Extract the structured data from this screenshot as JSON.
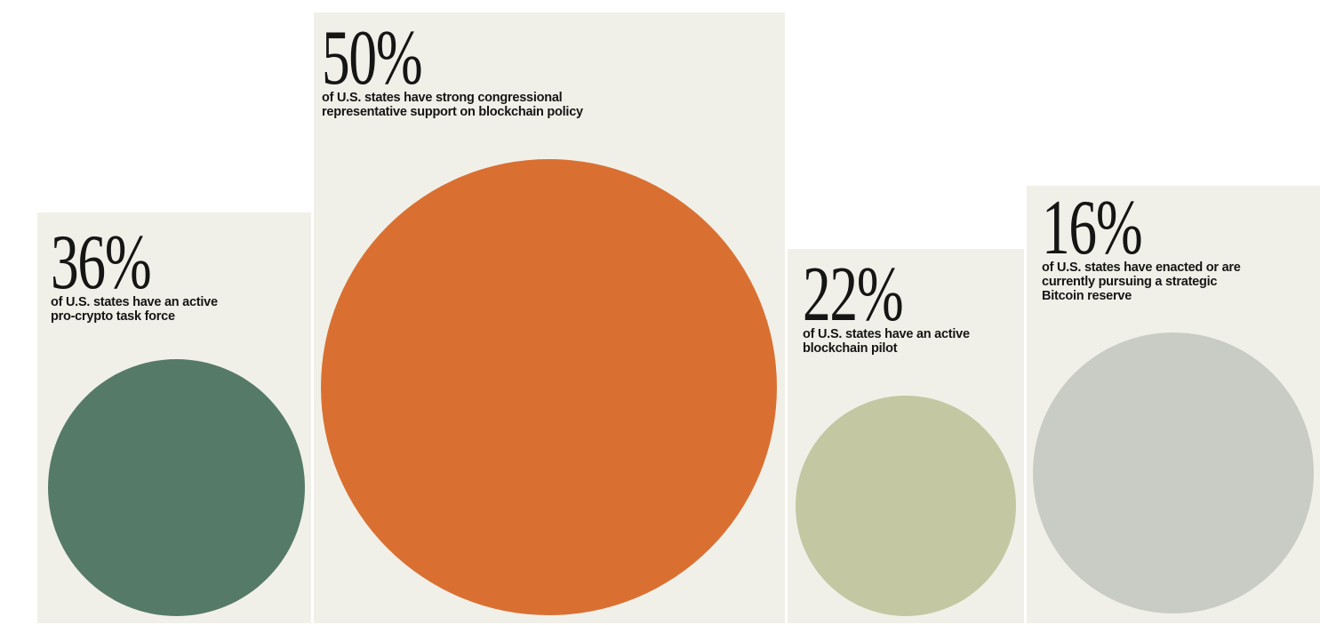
{
  "page": {
    "background": "#ffffff",
    "panel_background": "#f1f0e8",
    "text_color": "#151515"
  },
  "chart_data": {
    "type": "bar",
    "variant": "proportional-area-circles",
    "unit": "percent of U.S. states",
    "categories": [
      "of U.S. states have an active pro-crypto task force",
      "of U.S. states have strong congressional representative support on blockchain policy",
      "of U.S. states have an active blockchain pilot",
      "of U.S. states have enacted or are currently pursuing a strategic Bitcoin reserve"
    ],
    "values": [
      36,
      50,
      22,
      16
    ],
    "items": [
      {
        "value": 36,
        "value_label": "36%",
        "description": "of U.S. states have an active\npro-crypto task force",
        "circle_color": "#567a68"
      },
      {
        "value": 50,
        "value_label": "50%",
        "description": "of U.S. states have strong congressional\nrepresentative support on blockchain policy",
        "circle_color": "#d97032"
      },
      {
        "value": 22,
        "value_label": "22%",
        "description": "of U.S. states have an active\nblockchain pilot",
        "circle_color": "#c3c8a2"
      },
      {
        "value": 16,
        "value_label": "16%",
        "description": "of U.S. states have enacted or are\ncurrently pursuing a strategic\nBitcoin reserve",
        "circle_color": "#c9ccc4"
      }
    ]
  }
}
